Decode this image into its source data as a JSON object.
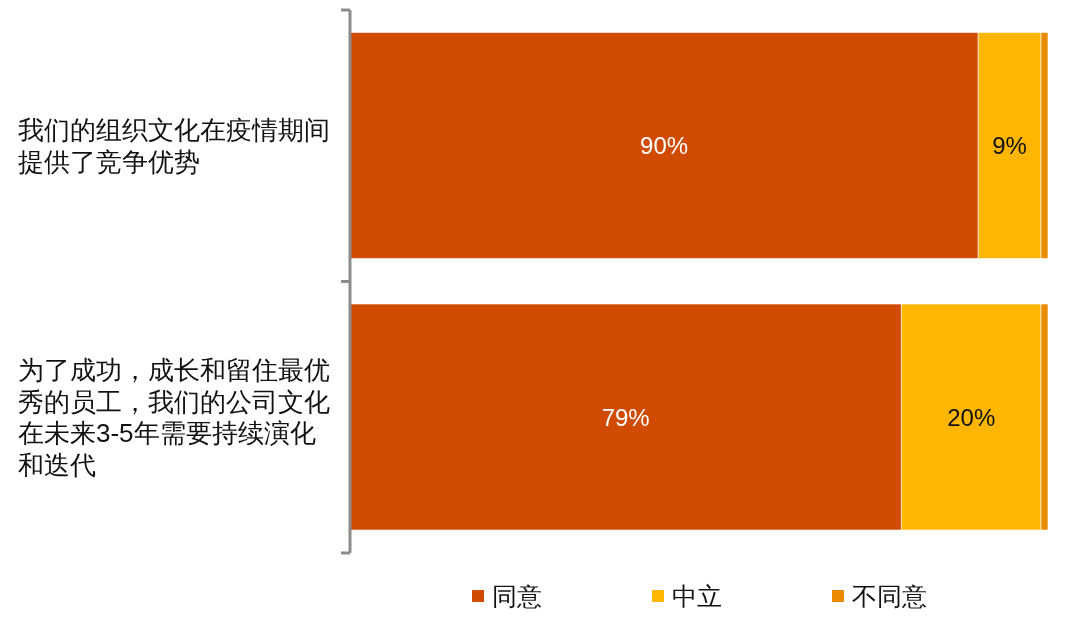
{
  "chart_data": {
    "type": "bar",
    "orientation": "horizontal",
    "stacked": true,
    "categories": [
      "我们的组织文化在疫情期间提供了竞争优势",
      "为了成功，成长和留住最优秀的员工，我们的公司文化在未来3-5年需要持续演化和迭代"
    ],
    "series": [
      {
        "name": "同意",
        "color": "#d04a02",
        "values": [
          90,
          79
        ],
        "value_labels": [
          "90%",
          "79%"
        ]
      },
      {
        "name": "中立",
        "color": "#ffb600",
        "values": [
          9,
          20
        ],
        "value_labels": [
          "9%",
          "20%"
        ]
      },
      {
        "name": "不同意",
        "color": "#eb8c00",
        "values": [
          1,
          1
        ]
      }
    ],
    "xlim": [
      0,
      100
    ],
    "tick_labels": "y",
    "legend": "bottom"
  }
}
